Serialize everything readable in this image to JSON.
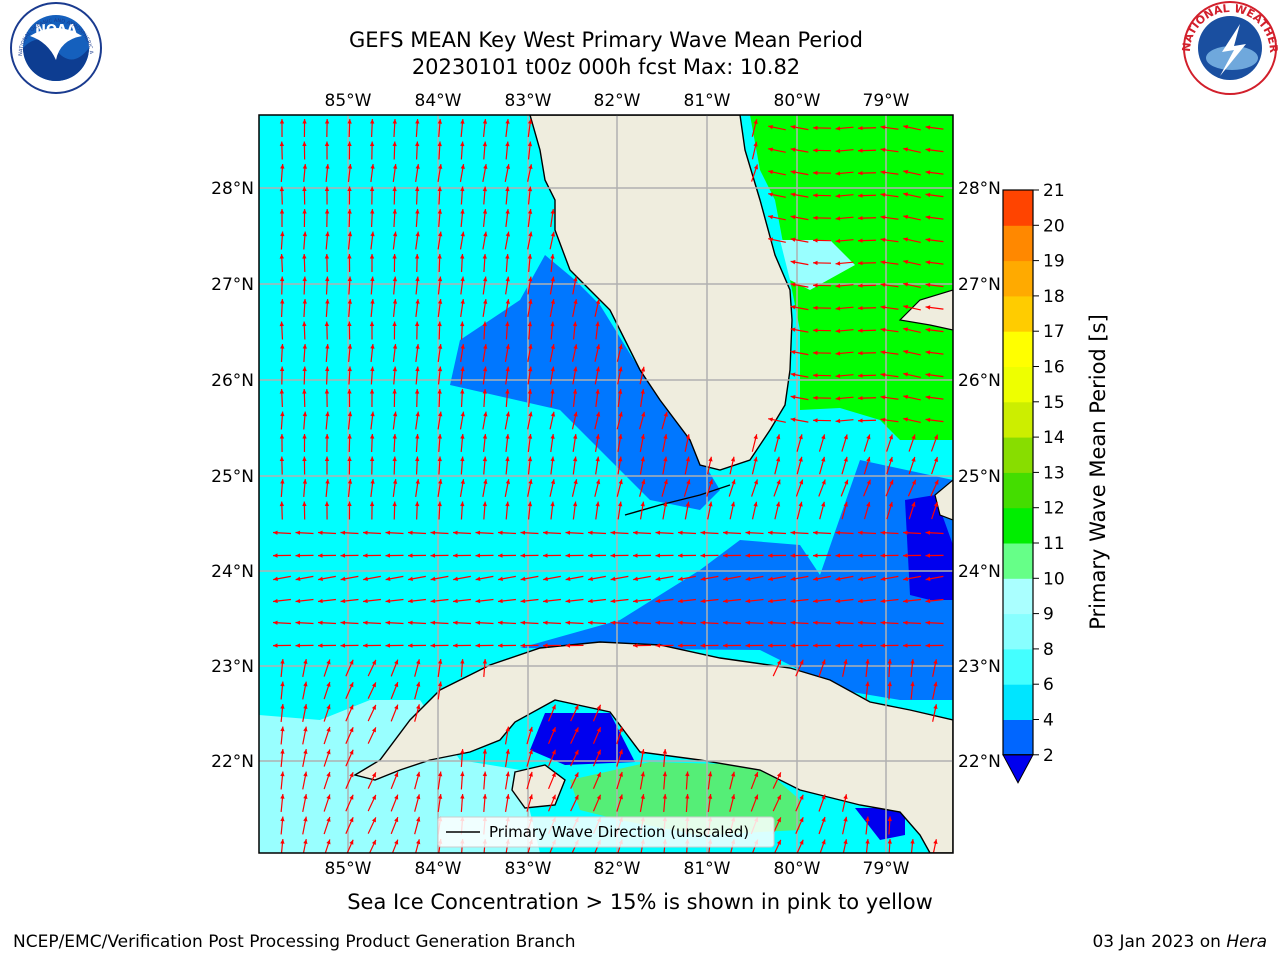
{
  "title_line1": "GEFS MEAN Key West Primary Wave Mean Period",
  "title_line2": "20230101 t00z 000h fcst   Max: 10.82",
  "caption": "Sea Ice Concentration > 15% is shown in pink to yellow",
  "footer_left": "NCEP/EMC/Verification Post Processing Product Generation Branch",
  "footer_date": "03 Jan 2023 on",
  "footer_host": "Hera",
  "legend_label": "Primary Wave Direction (unscaled)",
  "colorbar": {
    "title": "Primary Wave Mean Period [s]",
    "ticks": [
      "2",
      "4",
      "6",
      "8",
      "9",
      "10",
      "11",
      "12",
      "13",
      "14",
      "15",
      "16",
      "17",
      "18",
      "19",
      "20",
      "21"
    ],
    "colors": [
      "#0066ff",
      "#00e5ff",
      "#44ffff",
      "#88ffff",
      "#aaffff",
      "#66ff88",
      "#00ee00",
      "#44dd00",
      "#88dd00",
      "#ccee00",
      "#eeff00",
      "#ffff00",
      "#ffcc00",
      "#ffaa00",
      "#ff8800",
      "#ff4400",
      "#ff1100"
    ],
    "extend_color": "#0000ee"
  },
  "map": {
    "lon_labels": [
      "85°W",
      "84°W",
      "83°W",
      "82°W",
      "81°W",
      "80°W",
      "79°W"
    ],
    "lat_labels": [
      "28°N",
      "27°N",
      "26°N",
      "25°N",
      "24°N",
      "23°N",
      "22°N"
    ],
    "colors": {
      "land": "#efedde",
      "sea_cyan": "#00ffff",
      "sea_blue": "#0077ff",
      "sea_deep": "#0000ee",
      "sea_green": "#00ff00",
      "sea_lightgreen": "#55ee77",
      "sea_pale": "#99ffff",
      "arrow": "#ff0000",
      "grid": "#b0b0b0"
    }
  },
  "logos": {
    "noaa_text": "NOAA",
    "noaa_ring": "NATIONAL OCEANIC AND ATMOSPHERIC ADMINISTRATION · U.S. DEPARTMENT OF COMMERCE",
    "nws_ring": "NATIONAL WEATHER SERVICE"
  }
}
